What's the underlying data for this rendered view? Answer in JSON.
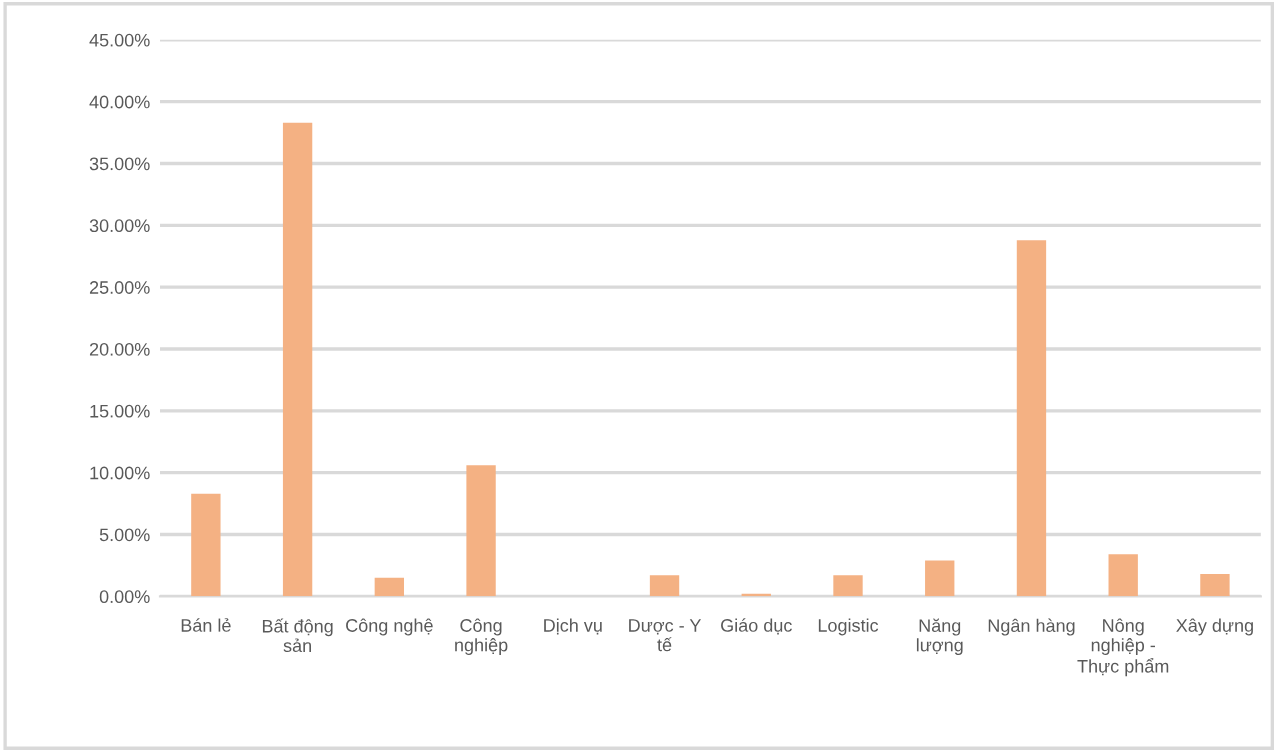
{
  "chart_data": {
    "type": "bar",
    "categories": [
      "Bán lẻ",
      "Bất động sản",
      "Công nghệ",
      "Công nghiệp",
      "Dịch vụ",
      "Dược - Y tế",
      "Giáo dục",
      "Logistic",
      "Năng lượng",
      "Ngân hàng",
      "Nông nghiệp - Thực phẩm",
      "Xây dựng"
    ],
    "values": [
      8.3,
      38.3,
      1.5,
      10.6,
      0,
      1.7,
      0.2,
      1.7,
      2.9,
      28.8,
      3.4,
      1.8
    ],
    "color": "#f4b183",
    "ylim": [
      0,
      45
    ],
    "yticks": [
      {
        "value": 0,
        "label": "0.00%"
      },
      {
        "value": 5,
        "label": "5.00%"
      },
      {
        "value": 10,
        "label": "10.00%"
      },
      {
        "value": 15,
        "label": "15.00%"
      },
      {
        "value": 20,
        "label": "20.00%"
      },
      {
        "value": 25,
        "label": "25.00%"
      },
      {
        "value": 30,
        "label": "30.00%"
      },
      {
        "value": 35,
        "label": "35.00%"
      },
      {
        "value": 40,
        "label": "40.00%"
      },
      {
        "value": 45,
        "label": "45.00%"
      }
    ],
    "grid": "y"
  }
}
